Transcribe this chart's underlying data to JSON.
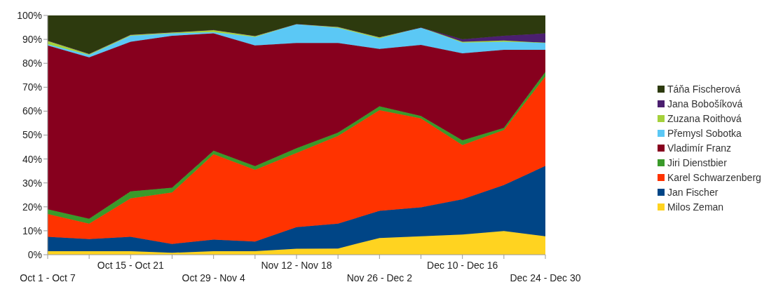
{
  "chart_data": {
    "type": "area",
    "stacked": true,
    "legend": "right",
    "categories": [
      "Oct 1 - Oct 7",
      null,
      "Oct 15 - Oct 21",
      null,
      "Oct 29 - Nov 4",
      null,
      "Nov 12 - Nov 18",
      null,
      "Nov 26 - Dec 2",
      null,
      "Dec 10 - Dec 16",
      null,
      "Dec 24 - Dec 30"
    ],
    "ylim": [
      0,
      100
    ],
    "yticks": [
      {
        "value": 0,
        "label": "0%"
      },
      {
        "value": 10,
        "label": "10%"
      },
      {
        "value": 20,
        "label": "20%"
      },
      {
        "value": 30,
        "label": "30%"
      },
      {
        "value": 40,
        "label": "40%"
      },
      {
        "value": 50,
        "label": "50%"
      },
      {
        "value": 60,
        "label": "60%"
      },
      {
        "value": 70,
        "label": "70%"
      },
      {
        "value": 80,
        "label": "80%"
      },
      {
        "value": 90,
        "label": "90%"
      },
      {
        "value": 100,
        "label": "100%"
      }
    ],
    "series": [
      {
        "name": "Milos Zeman",
        "color": "#ffd320",
        "values": [
          1.5,
          1.5,
          1.5,
          0.8,
          1.5,
          1.5,
          2.5,
          2.6,
          7,
          7.7,
          8.4,
          9.9,
          7.7
        ]
      },
      {
        "name": "Jan Fischer",
        "color": "#004586",
        "values": [
          6,
          5,
          6,
          3.7,
          4.8,
          4,
          9,
          10.4,
          11.3,
          12.1,
          14.8,
          19.2,
          29.4
        ]
      },
      {
        "name": "Karel Schwarzenberg",
        "color": "#ff3300",
        "values": [
          9.5,
          6.5,
          16,
          21.5,
          35.7,
          30,
          31,
          36.6,
          42.1,
          37.2,
          22.6,
          23,
          37.4
        ]
      },
      {
        "name": "Jiri Dienstbier",
        "color": "#3a9a2a",
        "values": [
          2,
          2,
          3,
          2,
          1.5,
          1.5,
          2,
          1.4,
          1.6,
          1,
          2,
          0.9,
          1.9
        ]
      },
      {
        "name": "Vladimír Franz",
        "color": "#87001e",
        "values": [
          68.5,
          67.5,
          62.5,
          63.5,
          49,
          50.5,
          44,
          37.5,
          24,
          29.7,
          36.4,
          32.6,
          9.2
        ]
      },
      {
        "name": "Přemysl Sobotka",
        "color": "#5bc8f5",
        "values": [
          0.5,
          1,
          2.5,
          1,
          0.5,
          3.5,
          7.8,
          6.3,
          4.4,
          7.3,
          4.4,
          3.4,
          3
        ]
      },
      {
        "name": "Zuzana Roithová",
        "color": "#a5d13c",
        "values": [
          1.5,
          0.5,
          0.5,
          0.5,
          1,
          0.5,
          0.2,
          0.5,
          0.6,
          0,
          0.4,
          0.5,
          0
        ]
      },
      {
        "name": "Jana Bobošíková",
        "color": "#4b1f6f",
        "values": [
          0,
          0,
          0,
          0,
          0,
          0,
          0,
          0,
          0,
          0,
          1,
          2,
          3.9
        ]
      },
      {
        "name": "Táňa Fischerová",
        "color": "#2d3a0e",
        "values": [
          10.5,
          16,
          8,
          7,
          6,
          8.5,
          3.5,
          4.7,
          9,
          5,
          10,
          8.5,
          7.5
        ]
      }
    ]
  }
}
